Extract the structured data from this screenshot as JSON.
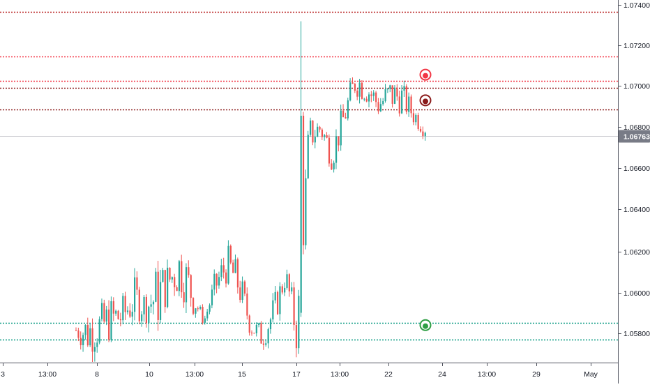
{
  "chart_data": {
    "type": "candlestick",
    "instrument_quote": "1.06763",
    "y_axis": {
      "ticks": [
        "1.07400",
        "1.07200",
        "1.07000",
        "1.06800",
        "1.06600",
        "1.06400",
        "1.06200",
        "1.06000",
        "1.05800"
      ],
      "ylim": [
        1.0565,
        1.0745
      ],
      "position": "right"
    },
    "x_axis": {
      "ticks": [
        "3",
        "13:00",
        "8",
        "10",
        "13:00",
        "15",
        "17",
        "13:00",
        "22",
        "24",
        "13:00",
        "29",
        "May"
      ],
      "position": "bottom"
    },
    "current_price": 1.06763,
    "horizontal_levels": [
      {
        "price": 1.07365,
        "style": "dotted",
        "color": "#b71c1c"
      },
      {
        "price": 1.0715,
        "style": "dotted",
        "color": "#f23645"
      },
      {
        "price": 1.0703,
        "style": "dotted",
        "color": "#f23645"
      },
      {
        "price": 1.06995,
        "style": "dotted",
        "color": "#8b1a1a"
      },
      {
        "price": 1.0689,
        "style": "dotted",
        "color": "#8b1a1a"
      },
      {
        "price": 1.0585,
        "style": "dotted",
        "color": "#089981"
      },
      {
        "price": 1.0577,
        "style": "dotted",
        "color": "#089981"
      }
    ],
    "markers": [
      {
        "price": 1.0706,
        "color": "#f23645"
      },
      {
        "price": 1.06935,
        "color": "#8b1a1a"
      },
      {
        "price": 1.0584,
        "color": "#2e9e44"
      }
    ],
    "candle_waypoints": [
      [
        1.0585,
        1.0578
      ],
      [
        1.0588,
        1.0573
      ],
      [
        1.059,
        1.0576
      ],
      [
        1.0594,
        1.058
      ],
      [
        1.0595,
        1.0582
      ],
      [
        1.0604,
        1.059
      ],
      [
        1.0598,
        1.0588
      ],
      [
        1.0609,
        1.0587
      ],
      [
        1.0612,
        1.06
      ],
      [
        1.0622,
        1.0603
      ],
      [
        1.0605,
        1.0592
      ],
      [
        1.0586,
        1.0586
      ],
      [
        1.0609,
        1.0598
      ],
      [
        1.062,
        1.0608
      ],
      [
        1.061,
        1.0597
      ],
      [
        1.0588,
        1.058
      ],
      [
        1.0582,
        1.0574
      ],
      [
        1.0596,
        1.0585
      ],
      [
        1.0612,
        1.0604
      ],
      [
        1.0588,
        1.0572
      ],
      [
        1.0682,
        1.067
      ],
      [
        1.0684,
        1.0676
      ],
      [
        1.0672,
        1.0662
      ],
      [
        1.069,
        1.068
      ],
      [
        1.0708,
        1.0698
      ],
      [
        1.0704,
        1.0694
      ],
      [
        1.0696,
        1.0687
      ],
      [
        1.0702,
        1.069
      ],
      [
        1.07,
        1.069
      ],
      [
        1.069,
        1.0683
      ],
      [
        1.0684,
        1.0677
      ]
    ],
    "colors": {
      "up": "#26a69a",
      "down": "#ef5350",
      "axis_text": "#131722",
      "axis_line": "#50535e",
      "price_label_bg": "#787b86",
      "price_line": "#9598a1"
    }
  }
}
